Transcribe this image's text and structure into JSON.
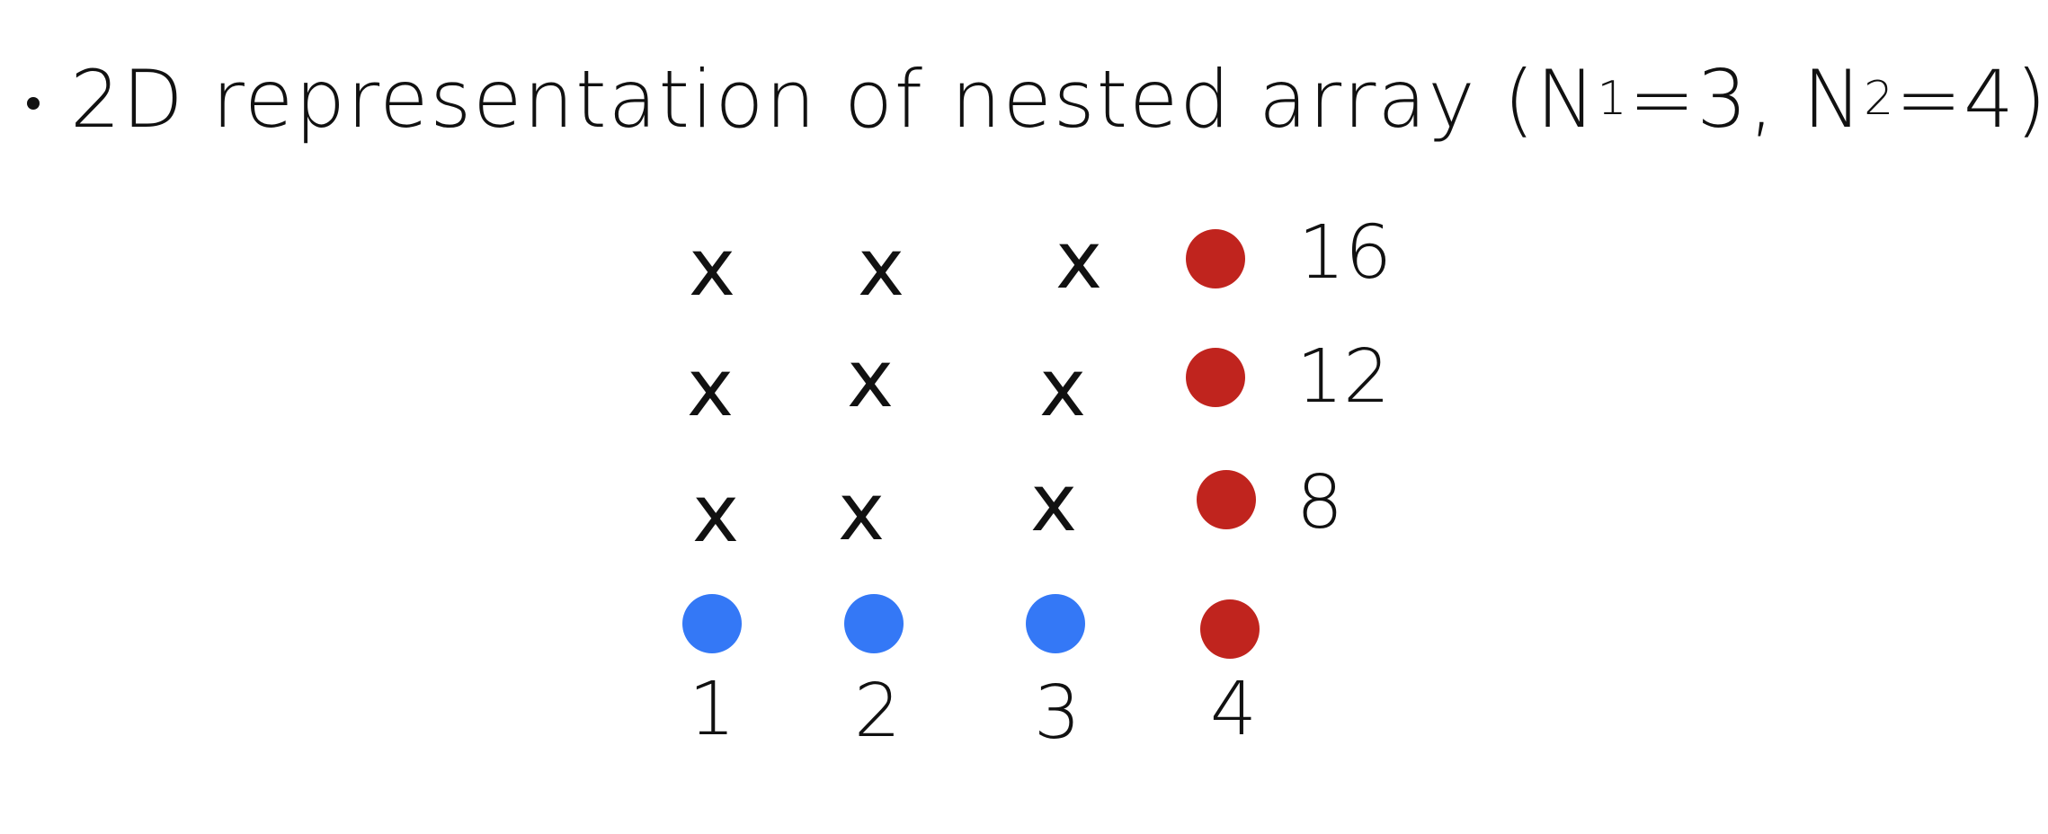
{
  "title": {
    "text_prefix": "2D representation of nested array (N",
    "n1_sub": "1",
    "n1_eq": "=3, N",
    "n2_sub": "2",
    "n2_eq": "=4)"
  },
  "grid": {
    "cross_symbol": "x",
    "colors": {
      "blue": "#3478f6",
      "red": "#c0241e"
    },
    "rows": [
      [
        "x",
        "x",
        "x",
        "red"
      ],
      [
        "x",
        "x",
        "x",
        "red"
      ],
      [
        "x",
        "x",
        "x",
        "red"
      ],
      [
        "blue",
        "blue",
        "blue",
        "red"
      ]
    ],
    "bottom_labels": [
      "1",
      "2",
      "3",
      "4"
    ],
    "right_labels": [
      "16",
      "12",
      "8"
    ]
  }
}
